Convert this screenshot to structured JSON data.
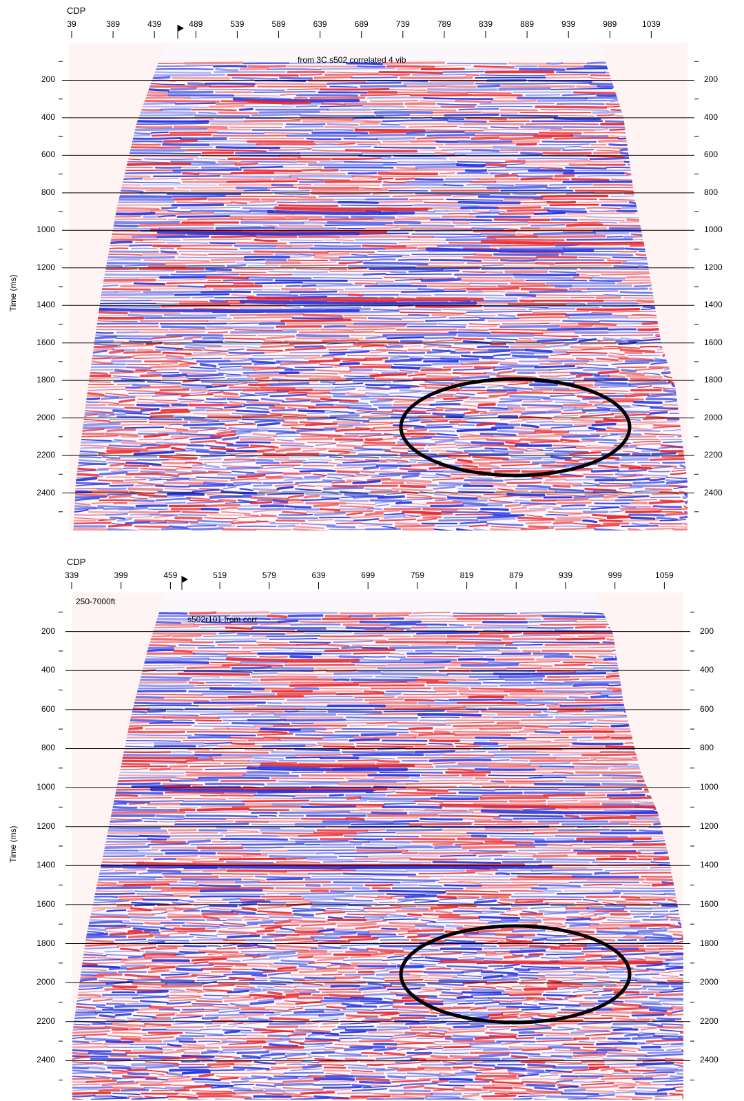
{
  "colors": {
    "positive": "#e8242a",
    "negative": "#1e2ee0",
    "background": "#fff4f4",
    "grid": "#000000",
    "ellipse": "#000000"
  },
  "chart_data": [
    {
      "type": "heatmap",
      "title": "from 3C s502 correlated 4 vib",
      "note": "",
      "xlabel": "CDP",
      "ylabel": "Time (ms)",
      "x_ticks": [
        "39",
        "389",
        "439",
        "489",
        "539",
        "589",
        "639",
        "689",
        "739",
        "789",
        "839",
        "889",
        "939",
        "989",
        "1039"
      ],
      "y_ticks": [
        200,
        400,
        600,
        800,
        1000,
        1200,
        1400,
        1600,
        1800,
        2000,
        2200,
        2400
      ],
      "ylim": [
        0,
        2600
      ],
      "grid": true,
      "annotation": "ellipse around CDP ~800-980, time ~1800-2300 ms"
    },
    {
      "type": "heatmap",
      "title": "s502r101 from corr",
      "note": "250-7000ft",
      "xlabel": "CDP",
      "ylabel": "Time (ms)",
      "x_ticks": [
        "339",
        "399",
        "459",
        "519",
        "579",
        "639",
        "699",
        "759",
        "819",
        "879",
        "939",
        "999",
        "1059"
      ],
      "y_ticks": [
        200,
        400,
        600,
        800,
        1000,
        1200,
        1400,
        1600,
        1800,
        2000,
        2200,
        2400
      ],
      "ylim": [
        0,
        2600
      ],
      "grid": true,
      "annotation": "ellipse around CDP ~780-960, time ~1750-2250 ms"
    }
  ]
}
